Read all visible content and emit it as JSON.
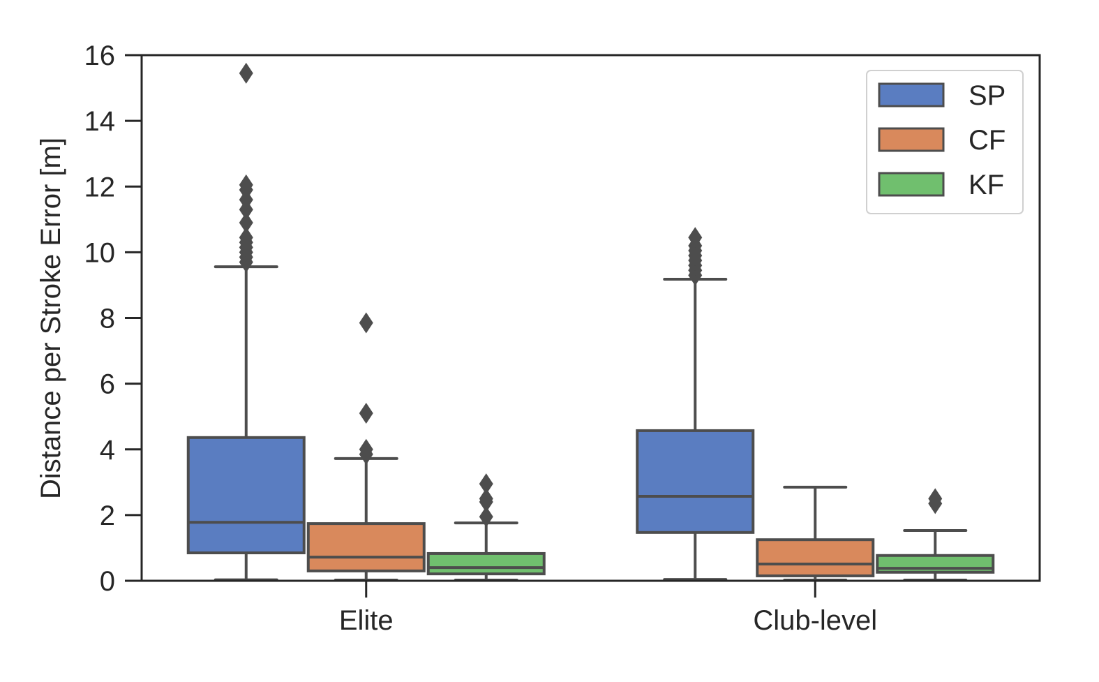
{
  "chart_data": {
    "type": "boxplot",
    "title": "",
    "xlabel": "",
    "ylabel": "Distance per Stroke Error [m]",
    "ylim": [
      0,
      16
    ],
    "yticks": [
      0,
      2,
      4,
      6,
      8,
      10,
      12,
      14,
      16
    ],
    "categories": [
      "Elite",
      "Club-level"
    ],
    "legend": {
      "position": "top-right"
    },
    "grid": false,
    "series": [
      {
        "name": "SP",
        "color": "#5a7dc1",
        "boxes": [
          {
            "whisker_low": 0.03,
            "q1": 0.85,
            "median": 1.78,
            "q3": 4.36,
            "whisker_high": 9.56,
            "outliers": [
              9.7,
              9.85,
              10.0,
              10.15,
              10.3,
              10.45,
              10.9,
              11.3,
              11.6,
              11.9,
              12.05,
              15.45
            ]
          },
          {
            "whisker_low": 0.04,
            "q1": 1.47,
            "median": 2.57,
            "q3": 4.57,
            "whisker_high": 9.18,
            "outliers": [
              9.3,
              9.45,
              9.6,
              9.75,
              9.9,
              10.05,
              10.2,
              10.45
            ]
          }
        ]
      },
      {
        "name": "CF",
        "color": "#d9895c",
        "boxes": [
          {
            "whisker_low": 0.02,
            "q1": 0.3,
            "median": 0.72,
            "q3": 1.74,
            "whisker_high": 3.72,
            "outliers": [
              3.85,
              4.0,
              5.1,
              7.85
            ]
          },
          {
            "whisker_low": 0.02,
            "q1": 0.15,
            "median": 0.51,
            "q3": 1.25,
            "whisker_high": 2.85,
            "outliers": []
          }
        ]
      },
      {
        "name": "KF",
        "color": "#70bf6e",
        "boxes": [
          {
            "whisker_low": 0.02,
            "q1": 0.21,
            "median": 0.4,
            "q3": 0.83,
            "whisker_high": 1.76,
            "outliers": [
              1.95,
              2.4,
              2.5,
              2.95
            ]
          },
          {
            "whisker_low": 0.02,
            "q1": 0.26,
            "median": 0.38,
            "q3": 0.77,
            "whisker_high": 1.53,
            "outliers": [
              2.35,
              2.5
            ]
          }
        ]
      }
    ]
  }
}
